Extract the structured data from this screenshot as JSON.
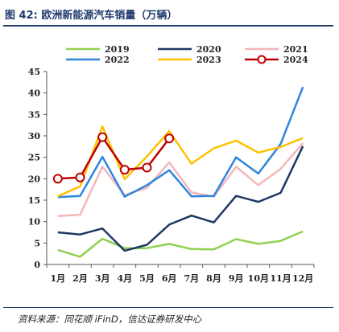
{
  "header": {
    "title": "图 42:  欧洲新能源汽车销量（万辆）"
  },
  "footer": {
    "source": "资料来源：同花顺 iFinD，信达证券研发中心"
  },
  "chart_data": {
    "type": "line",
    "title": "",
    "xlabel": "",
    "ylabel": "",
    "categories": [
      "1月",
      "2月",
      "3月",
      "4月",
      "5月",
      "6月",
      "7月",
      "8月",
      "9月",
      "10月",
      "11月",
      "12月"
    ],
    "ylim": [
      0,
      45
    ],
    "yticks": [
      0,
      5,
      10,
      15,
      20,
      25,
      30,
      35,
      40,
      45
    ],
    "grid": false,
    "legend_position": "top",
    "series": [
      {
        "name": "2019",
        "color": "#92d050",
        "marker": "none",
        "values": [
          3.4,
          1.8,
          6.0,
          3.8,
          3.8,
          4.8,
          3.6,
          3.5,
          5.9,
          4.8,
          5.5,
          7.7
        ]
      },
      {
        "name": "2020",
        "color": "#1f3864",
        "marker": "none",
        "values": [
          7.5,
          7.0,
          8.4,
          3.2,
          4.6,
          9.3,
          11.4,
          9.8,
          16.0,
          14.6,
          16.7,
          27.6
        ]
      },
      {
        "name": "2021",
        "color": "#f4b6b9",
        "marker": "none",
        "values": [
          11.3,
          11.6,
          22.8,
          16.2,
          17.9,
          23.8,
          16.8,
          15.8,
          22.8,
          18.5,
          22.3,
          28.3
        ]
      },
      {
        "name": "2022",
        "color": "#2e86de",
        "marker": "none",
        "values": [
          15.7,
          16.0,
          25.1,
          15.8,
          18.5,
          22.0,
          15.9,
          16.0,
          25.0,
          21.2,
          28.1,
          41.4
        ]
      },
      {
        "name": "2023",
        "color": "#ffc000",
        "marker": "none",
        "values": [
          15.9,
          18.2,
          32.2,
          19.9,
          25.2,
          31.1,
          23.5,
          27.1,
          28.9,
          26.1,
          27.4,
          29.5
        ]
      },
      {
        "name": "2024",
        "color": "#c00000",
        "marker": "circle",
        "values": [
          20.0,
          20.3,
          29.7,
          22.1,
          22.6,
          29.4,
          null,
          null,
          null,
          null,
          null,
          null
        ]
      }
    ]
  }
}
